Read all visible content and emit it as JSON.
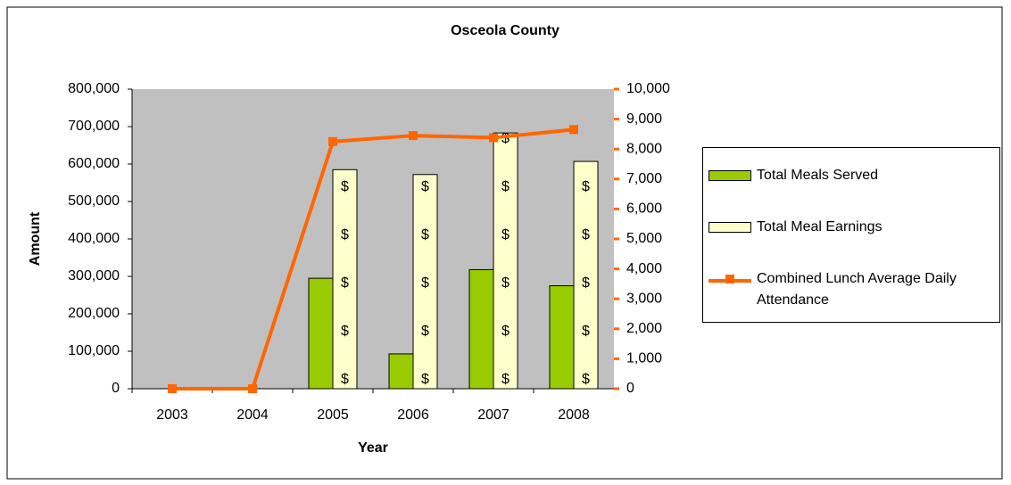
{
  "chart_data": {
    "type": "bar_line_combo",
    "title": "Osceola County",
    "x_label": "Year",
    "y_label": "Amount",
    "categories": [
      "2003",
      "2004",
      "2005",
      "2006",
      "2007",
      "2008"
    ],
    "series": [
      {
        "name": "Total Meals Served",
        "type": "bar",
        "color": "#99cc00",
        "values": [
          0,
          0,
          295000,
          93000,
          318000,
          275000
        ]
      },
      {
        "name": "Total Meal Earnings",
        "type": "bar",
        "color": "#ffffcc",
        "pattern_text": "$",
        "values": [
          0,
          0,
          585000,
          572000,
          683000,
          607000
        ]
      },
      {
        "name": "Combined Lunch Average Daily Attendance",
        "type": "line",
        "axis": "y2",
        "color": "#ff6600",
        "values": [
          0,
          0,
          8250,
          8450,
          8380,
          8650
        ]
      }
    ],
    "ylim": [
      0,
      800000
    ],
    "yticks": [
      0,
      {
        "value": 100000,
        "label": "100,000"
      },
      {
        "value": 200000,
        "label": "200,000"
      },
      {
        "value": 300000,
        "label": "300,000"
      },
      {
        "value": 400000,
        "label": "400,000"
      },
      {
        "value": 500000,
        "label": "500,000"
      },
      {
        "value": 600000,
        "label": "600,000"
      },
      {
        "value": 700000,
        "label": "700,000"
      },
      {
        "value": 800000,
        "label": "800,000"
      }
    ],
    "y2lim": [
      0,
      10000
    ],
    "y2ticks": [
      0,
      {
        "value": 1000,
        "label": "1,000"
      },
      {
        "value": 2000,
        "label": "2,000"
      },
      {
        "value": 3000,
        "label": "3,000"
      },
      {
        "value": 4000,
        "label": "4,000"
      },
      {
        "value": 5000,
        "label": "5,000"
      },
      {
        "value": 6000,
        "label": "6,000"
      },
      {
        "value": 7000,
        "label": "7,000"
      },
      {
        "value": 8000,
        "label": "8,000"
      },
      {
        "value": 9000,
        "label": "9,000"
      },
      {
        "value": 10000,
        "label": "10,000"
      }
    ],
    "plot_background": "#c0c0c0",
    "legend": "right"
  }
}
